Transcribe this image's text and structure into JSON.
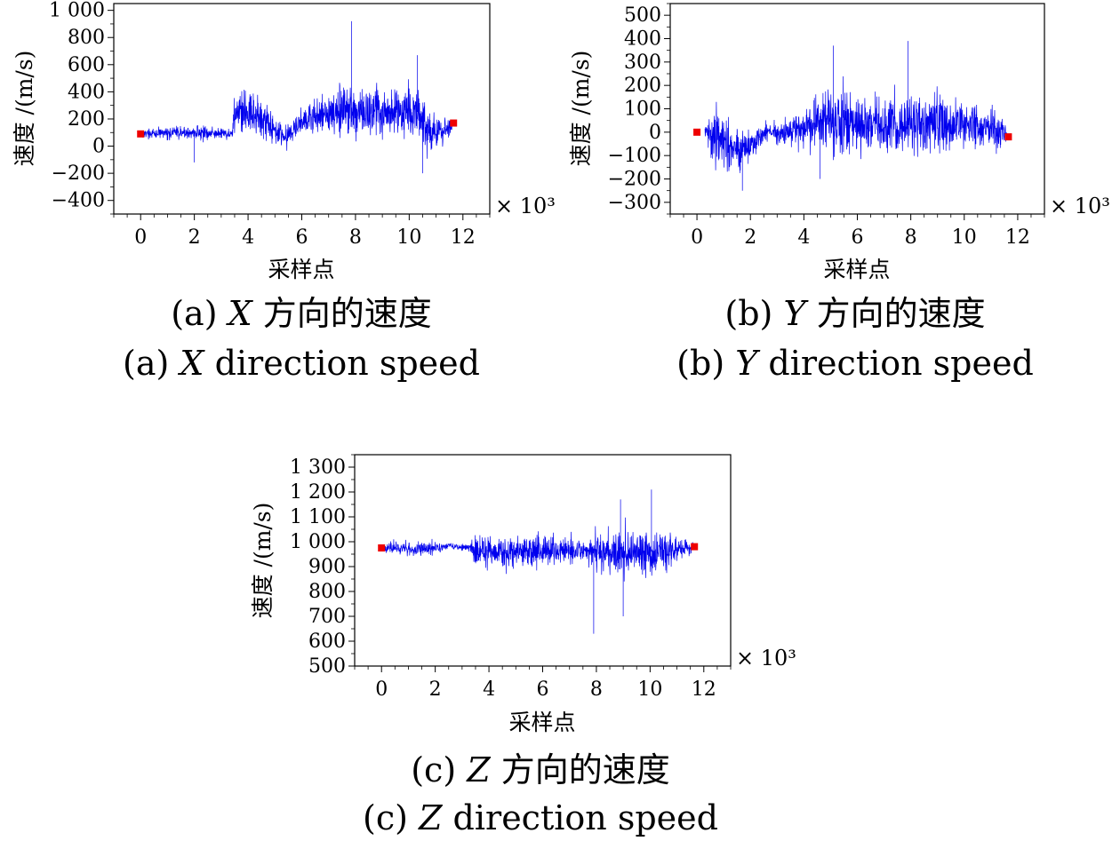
{
  "chart_data": [
    {
      "type": "line",
      "panel": "a",
      "caption_cn": [
        "(a) ",
        "X",
        " 方向的速度"
      ],
      "caption_en": [
        "(a) ",
        "X",
        " direction speed"
      ],
      "xlabel": "采样点",
      "ylabel": "速度 /(m/s)",
      "x_multiplier": "× 10³",
      "xlim": [
        -1,
        13
      ],
      "ylim": [
        -500,
        1050
      ],
      "xticks": [
        0,
        2,
        4,
        6,
        8,
        10,
        12
      ],
      "yticks": [
        -400,
        -200,
        0,
        200,
        400,
        600,
        800,
        1000
      ],
      "ytick_labels": [
        "−400",
        "−200",
        "0",
        "200",
        "400",
        "600",
        "800",
        "1 000"
      ],
      "series_color": "#0000ee",
      "marker_color": "#ee0000",
      "markers": [
        {
          "x": 0,
          "y": 90
        },
        {
          "x": 11.65,
          "y": 170
        }
      ],
      "profile": [
        {
          "x": 0,
          "center": 90,
          "amp": 40
        },
        {
          "x": 2,
          "center": 100,
          "amp": 80
        },
        {
          "x": 3.4,
          "center": 90,
          "amp": 50
        },
        {
          "x": 3.5,
          "center": 260,
          "amp": 250
        },
        {
          "x": 4.6,
          "center": 200,
          "amp": 200
        },
        {
          "x": 5.3,
          "center": 70,
          "amp": 110
        },
        {
          "x": 6.2,
          "center": 200,
          "amp": 150
        },
        {
          "x": 7.7,
          "center": 260,
          "amp": 260
        },
        {
          "x": 8.5,
          "center": 250,
          "amp": 220
        },
        {
          "x": 10.3,
          "center": 250,
          "amp": 280
        },
        {
          "x": 10.8,
          "center": 100,
          "amp": 200
        },
        {
          "x": 11.6,
          "center": 130,
          "amp": 80
        }
      ],
      "spikes": [
        {
          "x": 7.85,
          "y": 920
        },
        {
          "x": 10.3,
          "y": 670
        },
        {
          "x": 10.5,
          "y": -200
        },
        {
          "x": 2.0,
          "y": -120
        }
      ]
    },
    {
      "type": "line",
      "panel": "b",
      "caption_cn": [
        "(b) ",
        "Y",
        " 方向的速度"
      ],
      "caption_en": [
        "(b) ",
        "Y",
        " direction speed"
      ],
      "xlabel": "采样点",
      "ylabel": "速度 /(m/s)",
      "x_multiplier": "× 10³",
      "xlim": [
        -1,
        13
      ],
      "ylim": [
        -350,
        550
      ],
      "xticks": [
        0,
        2,
        4,
        6,
        8,
        10,
        12
      ],
      "yticks": [
        -300,
        -200,
        -100,
        0,
        100,
        200,
        300,
        400,
        500
      ],
      "ytick_labels": [
        "−300",
        "−200",
        "−100",
        "0",
        "100",
        "200",
        "300",
        "400",
        "500"
      ],
      "series_color": "#0000ee",
      "marker_color": "#ee0000",
      "markers": [
        {
          "x": 0,
          "y": 0
        },
        {
          "x": 11.65,
          "y": -20
        }
      ],
      "profile": [
        {
          "x": 0.3,
          "center": 0,
          "amp": 60
        },
        {
          "x": 0.7,
          "center": -20,
          "amp": 160
        },
        {
          "x": 1.7,
          "center": -80,
          "amp": 120
        },
        {
          "x": 2.5,
          "center": 0,
          "amp": 50
        },
        {
          "x": 3.5,
          "center": 0,
          "amp": 80
        },
        {
          "x": 5.0,
          "center": 60,
          "amp": 220
        },
        {
          "x": 6.5,
          "center": 20,
          "amp": 150
        },
        {
          "x": 9.0,
          "center": 40,
          "amp": 180
        },
        {
          "x": 10.5,
          "center": 20,
          "amp": 140
        },
        {
          "x": 11.6,
          "center": 0,
          "amp": 90
        }
      ],
      "spikes": [
        {
          "x": 5.1,
          "y": 370
        },
        {
          "x": 7.9,
          "y": 390
        },
        {
          "x": 1.7,
          "y": -250
        },
        {
          "x": 4.6,
          "y": -200
        }
      ]
    },
    {
      "type": "line",
      "panel": "c",
      "caption_cn": [
        "(c) ",
        "Z",
        " 方向的速度"
      ],
      "caption_en": [
        "(c) ",
        "Z",
        " direction speed"
      ],
      "xlabel": "采样点",
      "ylabel": "速度 /(m/s)",
      "x_multiplier": "× 10³",
      "xlim": [
        -1,
        13
      ],
      "ylim": [
        500,
        1350
      ],
      "xticks": [
        0,
        2,
        4,
        6,
        8,
        10,
        12
      ],
      "yticks": [
        500,
        600,
        700,
        800,
        900,
        1000,
        1100,
        1200,
        1300
      ],
      "ytick_labels": [
        "500",
        "600",
        "700",
        "800",
        "900",
        "1 000",
        "1 100",
        "1 200",
        "1 300"
      ],
      "series_color": "#0000ee",
      "marker_color": "#ee0000",
      "markers": [
        {
          "x": 0,
          "y": 975
        },
        {
          "x": 11.65,
          "y": 980
        }
      ],
      "profile": [
        {
          "x": 0.1,
          "center": 975,
          "amp": 30
        },
        {
          "x": 1.8,
          "center": 970,
          "amp": 45
        },
        {
          "x": 2.5,
          "center": 985,
          "amp": 15
        },
        {
          "x": 3.3,
          "center": 975,
          "amp": 20
        },
        {
          "x": 3.5,
          "center": 960,
          "amp": 90
        },
        {
          "x": 5.5,
          "center": 960,
          "amp": 85
        },
        {
          "x": 7.5,
          "center": 965,
          "amp": 70
        },
        {
          "x": 8.3,
          "center": 960,
          "amp": 130
        },
        {
          "x": 10.3,
          "center": 960,
          "amp": 140
        },
        {
          "x": 11.0,
          "center": 970,
          "amp": 60
        },
        {
          "x": 11.6,
          "center": 975,
          "amp": 30
        }
      ],
      "spikes": [
        {
          "x": 10.05,
          "y": 1210
        },
        {
          "x": 7.9,
          "y": 630
        },
        {
          "x": 9.0,
          "y": 700
        },
        {
          "x": 8.9,
          "y": 1170
        }
      ]
    }
  ]
}
